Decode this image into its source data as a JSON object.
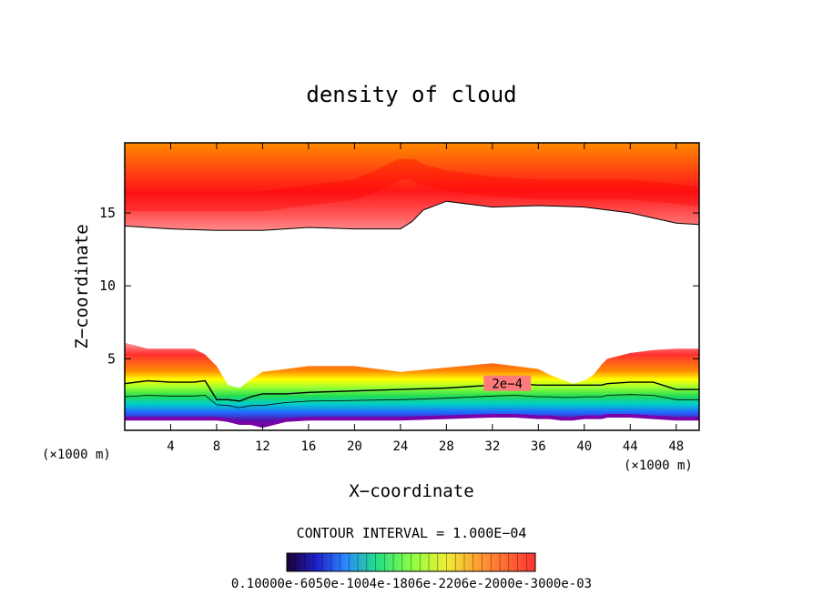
{
  "chart_data": {
    "type": "contour",
    "title": "density of cloud",
    "xlabel": "X−coordinate",
    "ylabel": "Z−coordinate",
    "x_unit_left": "(×1000 m)",
    "x_unit_right": "(×1000 m)",
    "xlim": [
      0,
      50
    ],
    "ylim": [
      0.1,
      19.8
    ],
    "x_ticks": [
      4,
      8,
      12,
      16,
      20,
      24,
      28,
      32,
      36,
      40,
      44,
      48
    ],
    "y_ticks": [
      5,
      10,
      15
    ],
    "contour_interval_text": "CONTOUR INTERVAL = 1.000E−04",
    "contour_label": "2e−4",
    "contour_label_x": 33.3,
    "contour_label_z": 3.3,
    "colorbar_label": "0.10000e-6050e-1004e-1806e-2206e-2000e-3000e-03",
    "colors": {
      "red": "#ff1a1a",
      "orange": "#ff8c00",
      "green": "#33dd33",
      "blue": "#3060ff"
    },
    "upper_cloud": {
      "x": [
        0,
        4,
        8,
        12,
        16,
        20,
        22,
        24,
        25,
        26,
        28,
        32,
        36,
        40,
        44,
        48,
        50
      ],
      "bottom": [
        14.1,
        13.9,
        13.8,
        13.8,
        14.0,
        13.9,
        13.9,
        13.9,
        14.4,
        15.2,
        15.8,
        15.4,
        15.5,
        15.4,
        15.0,
        14.3,
        14.2
      ],
      "core": [
        15.8,
        15.8,
        15.8,
        15.8,
        16.2,
        16.6,
        17.2,
        18.0,
        18.0,
        17.6,
        17.2,
        16.8,
        16.6,
        16.6,
        16.6,
        16.3,
        16.1
      ],
      "top": 19.8
    },
    "lower_cloud": {
      "x": [
        0,
        2,
        4,
        6,
        7,
        8,
        9,
        10,
        11,
        12,
        14,
        16,
        20,
        24,
        28,
        32,
        34,
        36,
        37,
        38,
        39,
        40,
        40.8,
        41.5,
        42,
        44,
        46,
        48,
        50
      ],
      "top": [
        6.1,
        5.7,
        5.7,
        5.7,
        5.3,
        4.5,
        3.2,
        3.0,
        3.6,
        4.1,
        4.3,
        4.5,
        4.5,
        4.1,
        4.4,
        4.7,
        4.5,
        4.3,
        3.9,
        3.6,
        3.3,
        3.5,
        3.9,
        4.6,
        5.0,
        5.4,
        5.6,
        5.7,
        5.7
      ],
      "c2e4": [
        3.3,
        3.5,
        3.4,
        3.4,
        3.5,
        2.2,
        2.2,
        2.1,
        2.4,
        2.6,
        2.6,
        2.7,
        2.8,
        2.9,
        3.0,
        3.2,
        3.3,
        3.2,
        3.2,
        3.2,
        3.2,
        3.2,
        3.2,
        3.2,
        3.3,
        3.4,
        3.4,
        2.9,
        2.9
      ],
      "base": [
        0.9,
        0.9,
        0.9,
        0.9,
        0.9,
        0.9,
        0.8,
        0.6,
        0.6,
        0.4,
        0.8,
        0.9,
        0.9,
        0.9,
        1.0,
        1.1,
        1.1,
        1.0,
        1.0,
        0.9,
        0.9,
        1.0,
        1.0,
        1.0,
        1.1,
        1.1,
        1.0,
        0.9,
        0.9
      ]
    }
  }
}
